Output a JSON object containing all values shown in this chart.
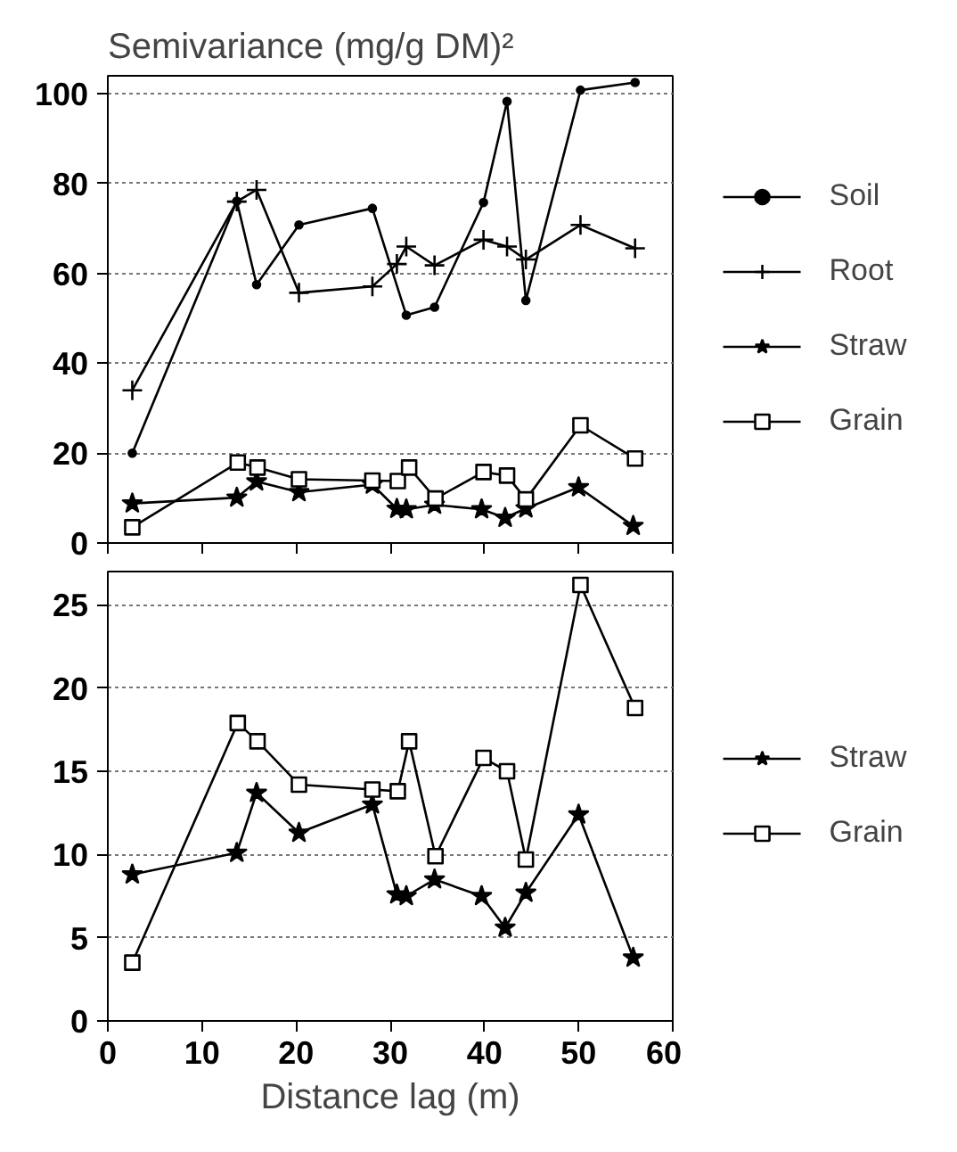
{
  "chart_data": [
    {
      "type": "line",
      "title": "Semivariance (mg/g DM)²",
      "xlim": [
        0,
        60
      ],
      "xticks": [
        0,
        10,
        20,
        30,
        40,
        50,
        60
      ],
      "ylim": [
        0,
        104
      ],
      "yticks": [
        0,
        20,
        40,
        60,
        80,
        100
      ],
      "tick_labels": "y",
      "grid": "y",
      "legend": "right",
      "line_style": "solid",
      "series": [
        {
          "name": "Soil",
          "color": "#000000",
          "marker": "circle",
          "x": [
            2.6,
            13.7,
            15.8,
            20.3,
            28.1,
            31.7,
            34.7,
            39.9,
            42.4,
            44.4,
            50.2,
            56.0
          ],
          "values": [
            20.0,
            76.1,
            57.5,
            70.8,
            74.5,
            50.7,
            52.5,
            75.8,
            98.3,
            54.0,
            100.8,
            102.5
          ]
        },
        {
          "name": "Root",
          "color": "#000000",
          "marker": "cross",
          "x": [
            2.6,
            13.7,
            15.8,
            20.3,
            28.1,
            30.7,
            31.7,
            34.7,
            39.9,
            42.4,
            44.4,
            50.2,
            56.0
          ],
          "values": [
            34.0,
            76.0,
            78.6,
            55.7,
            57.1,
            62.1,
            66.0,
            61.8,
            67.5,
            66.0,
            63.1,
            70.8,
            65.6
          ]
        },
        {
          "name": "Straw",
          "color": "#000000",
          "marker": "star",
          "x": [
            2.6,
            13.7,
            15.8,
            20.3,
            28.1,
            30.7,
            31.7,
            34.7,
            39.7,
            42.2,
            44.4,
            50.0,
            55.8
          ],
          "values": [
            8.8,
            10.1,
            13.7,
            11.3,
            13.0,
            7.6,
            7.5,
            8.5,
            7.5,
            5.6,
            7.7,
            12.4,
            3.8
          ]
        },
        {
          "name": "Grain",
          "color": "#000000",
          "marker": "square",
          "x": [
            2.6,
            13.8,
            15.9,
            20.3,
            28.1,
            30.8,
            32.0,
            34.8,
            39.9,
            42.4,
            44.4,
            50.2,
            56.0
          ],
          "values": [
            3.5,
            17.9,
            16.8,
            14.2,
            13.9,
            13.8,
            16.8,
            9.9,
            15.8,
            15.0,
            9.7,
            26.2,
            18.8
          ]
        }
      ]
    },
    {
      "type": "line",
      "xlabel": "Distance lag (m)",
      "xlim": [
        0,
        60
      ],
      "xticks": [
        0,
        10,
        20,
        30,
        40,
        50,
        60
      ],
      "ylim": [
        0,
        27
      ],
      "yticks": [
        0,
        5,
        10,
        15,
        20,
        25
      ],
      "grid": "y",
      "legend": "right",
      "line_style": "solid",
      "series": [
        {
          "name": "Straw",
          "color": "#000000",
          "marker": "star",
          "x": [
            2.6,
            13.7,
            15.8,
            20.3,
            28.1,
            30.7,
            31.7,
            34.7,
            39.7,
            42.2,
            44.4,
            50.0,
            55.8
          ],
          "values": [
            8.8,
            10.1,
            13.7,
            11.3,
            13.0,
            7.6,
            7.5,
            8.5,
            7.5,
            5.6,
            7.7,
            12.4,
            3.8
          ]
        },
        {
          "name": "Grain",
          "color": "#000000",
          "marker": "square",
          "x": [
            2.6,
            13.8,
            15.9,
            20.3,
            28.1,
            30.8,
            32.0,
            34.8,
            39.9,
            42.4,
            44.4,
            50.2,
            56.0
          ],
          "values": [
            3.5,
            17.9,
            16.8,
            14.2,
            13.9,
            13.8,
            16.8,
            9.9,
            15.8,
            15.0,
            9.7,
            26.2,
            18.8
          ]
        }
      ]
    }
  ]
}
